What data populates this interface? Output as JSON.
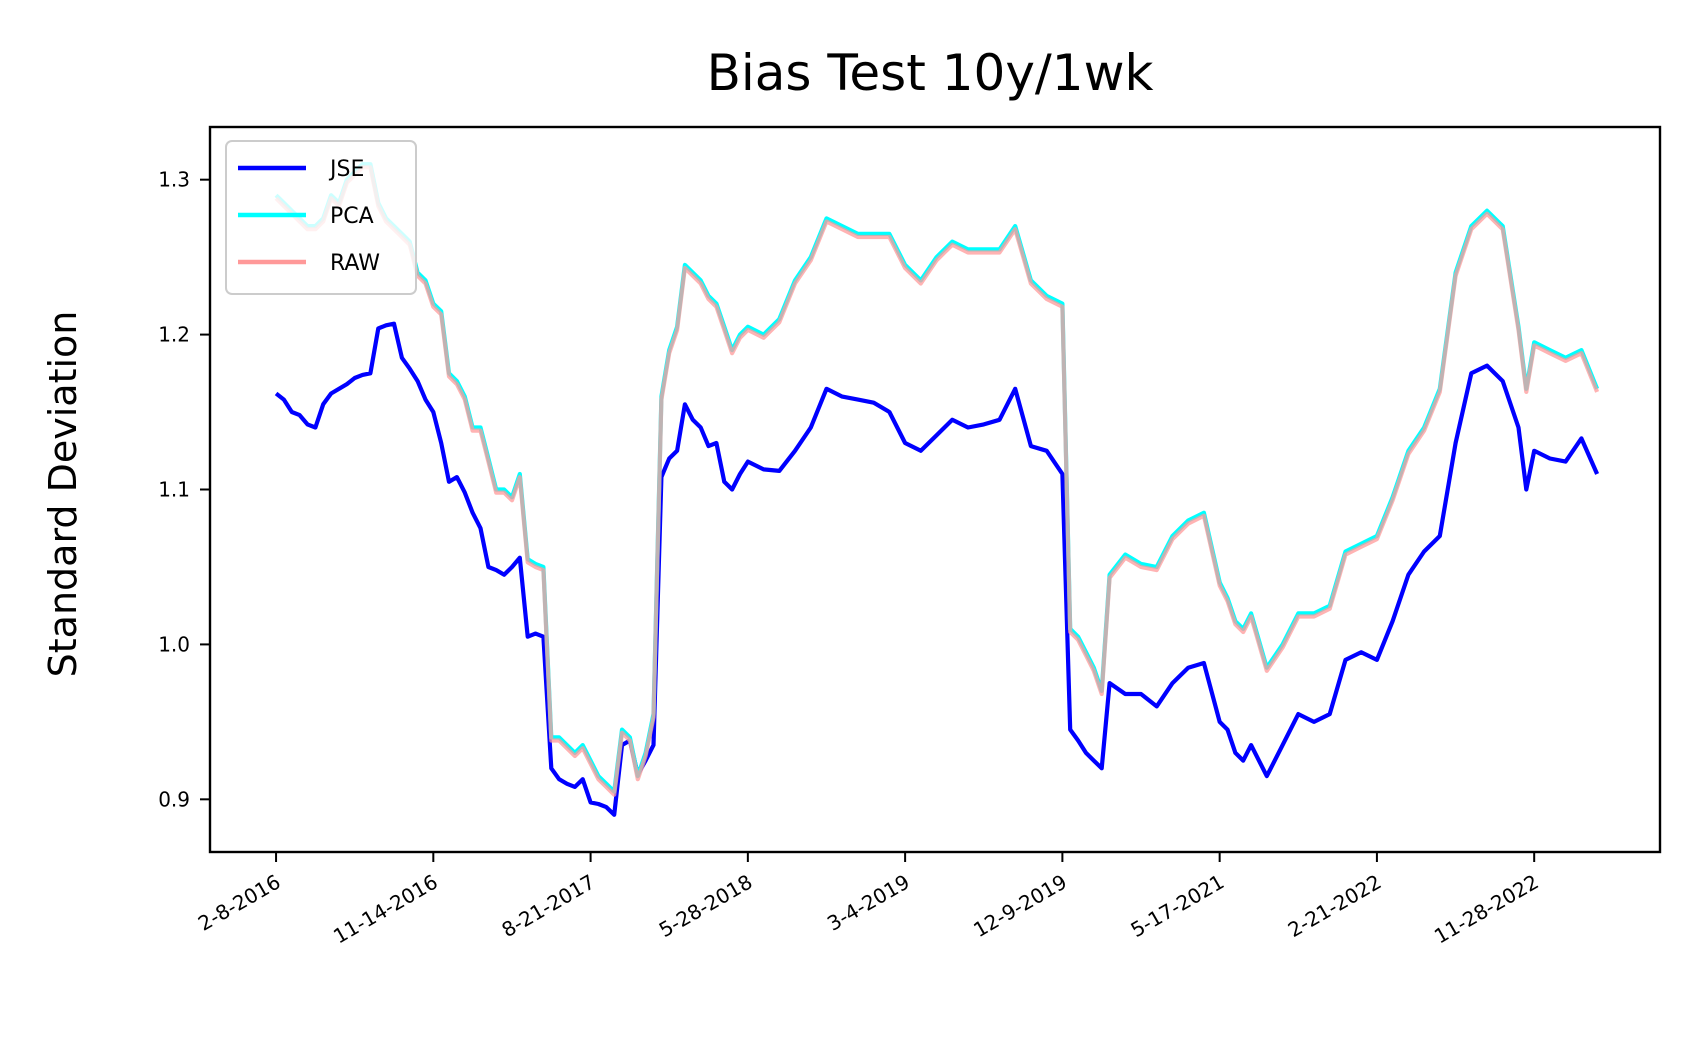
{
  "chart_data": {
    "type": "line",
    "title": "Bias Test 10y/1wk",
    "xlabel": "",
    "ylabel": "Standard Deviation",
    "xlim": [
      -0.42,
      8.8
    ],
    "ylim": [
      0.866,
      1.334
    ],
    "yticks": [
      0.9,
      1.0,
      1.1,
      1.2,
      1.3
    ],
    "ytick_labels": [
      "0.9",
      "1.0",
      "1.1",
      "1.2",
      "1.3"
    ],
    "xticks": [
      0,
      1,
      2,
      3,
      4,
      5,
      6,
      7,
      8
    ],
    "xtick_labels": [
      "2-8-2016",
      "11-14-2016",
      "8-21-2017",
      "5-28-2018",
      "3-4-2019",
      "12-9-2019",
      "5-17-2021",
      "2-21-2022",
      "11-28-2022"
    ],
    "grid": false,
    "legend_position": "upper left",
    "series": [
      {
        "name": "JSE",
        "color": "#0000ff",
        "x": [
          0,
          0.05,
          0.1,
          0.15,
          0.2,
          0.25,
          0.3,
          0.35,
          0.4,
          0.45,
          0.5,
          0.55,
          0.6,
          0.65,
          0.7,
          0.75,
          0.8,
          0.85,
          0.9,
          0.95,
          1.0,
          1.05,
          1.1,
          1.15,
          1.2,
          1.25,
          1.3,
          1.35,
          1.4,
          1.45,
          1.5,
          1.55,
          1.6,
          1.65,
          1.7,
          1.75,
          1.8,
          1.85,
          1.9,
          1.95,
          2.0,
          2.05,
          2.1,
          2.15,
          2.2,
          2.25,
          2.3,
          2.35,
          2.4,
          2.45,
          2.5,
          2.55,
          2.6,
          2.65,
          2.7,
          2.75,
          2.8,
          2.85,
          2.9,
          2.95,
          3.0,
          3.1,
          3.2,
          3.3,
          3.4,
          3.5,
          3.6,
          3.7,
          3.8,
          3.9,
          4.0,
          4.1,
          4.2,
          4.3,
          4.4,
          4.5,
          4.6,
          4.7,
          4.8,
          4.9,
          5.0,
          5.05,
          5.1,
          5.15,
          5.2,
          5.25,
          5.3,
          5.4,
          5.5,
          5.6,
          5.7,
          5.8,
          5.9,
          6.0,
          6.05,
          6.1,
          6.15,
          6.2,
          6.3,
          6.4,
          6.5,
          6.6,
          6.7,
          6.8,
          6.9,
          7.0,
          7.1,
          7.2,
          7.3,
          7.4,
          7.5,
          7.6,
          7.7,
          7.8,
          7.9,
          7.95,
          8.0,
          8.1,
          8.2,
          8.3,
          8.4
        ],
        "y": [
          1.162,
          1.158,
          1.15,
          1.148,
          1.142,
          1.14,
          1.155,
          1.162,
          1.165,
          1.168,
          1.172,
          1.174,
          1.175,
          1.204,
          1.206,
          1.207,
          1.185,
          1.178,
          1.17,
          1.158,
          1.15,
          1.13,
          1.105,
          1.108,
          1.098,
          1.085,
          1.075,
          1.05,
          1.048,
          1.045,
          1.05,
          1.056,
          1.005,
          1.007,
          1.005,
          0.92,
          0.913,
          0.91,
          0.908,
          0.913,
          0.898,
          0.897,
          0.895,
          0.89,
          0.935,
          0.938,
          0.916,
          0.925,
          0.935,
          1.108,
          1.12,
          1.125,
          1.155,
          1.145,
          1.14,
          1.128,
          1.13,
          1.105,
          1.1,
          1.11,
          1.118,
          1.113,
          1.112,
          1.125,
          1.14,
          1.165,
          1.16,
          1.158,
          1.156,
          1.15,
          1.13,
          1.125,
          1.135,
          1.145,
          1.14,
          1.142,
          1.145,
          1.165,
          1.128,
          1.125,
          1.11,
          0.945,
          0.938,
          0.93,
          0.925,
          0.92,
          0.975,
          0.968,
          0.968,
          0.96,
          0.975,
          0.985,
          0.988,
          0.95,
          0.945,
          0.93,
          0.925,
          0.935,
          0.915,
          0.935,
          0.955,
          0.95,
          0.955,
          0.99,
          0.995,
          0.99,
          1.015,
          1.045,
          1.06,
          1.07,
          1.13,
          1.175,
          1.18,
          1.17,
          1.14,
          1.1,
          1.125,
          1.12,
          1.118,
          1.133,
          1.11
        ]
      },
      {
        "name": "PCA",
        "color": "#00ffff",
        "x": [
          0,
          0.05,
          0.1,
          0.15,
          0.2,
          0.25,
          0.3,
          0.35,
          0.4,
          0.45,
          0.5,
          0.55,
          0.6,
          0.65,
          0.7,
          0.75,
          0.8,
          0.85,
          0.9,
          0.95,
          1.0,
          1.05,
          1.1,
          1.15,
          1.2,
          1.25,
          1.3,
          1.35,
          1.4,
          1.45,
          1.5,
          1.55,
          1.6,
          1.65,
          1.7,
          1.75,
          1.8,
          1.85,
          1.9,
          1.95,
          2.0,
          2.05,
          2.1,
          2.15,
          2.2,
          2.25,
          2.3,
          2.35,
          2.4,
          2.45,
          2.5,
          2.55,
          2.6,
          2.65,
          2.7,
          2.75,
          2.8,
          2.85,
          2.9,
          2.95,
          3.0,
          3.1,
          3.2,
          3.3,
          3.4,
          3.5,
          3.6,
          3.7,
          3.8,
          3.9,
          4.0,
          4.1,
          4.2,
          4.3,
          4.4,
          4.5,
          4.6,
          4.7,
          4.8,
          4.9,
          5.0,
          5.05,
          5.1,
          5.15,
          5.2,
          5.25,
          5.3,
          5.4,
          5.5,
          5.6,
          5.7,
          5.8,
          5.9,
          6.0,
          6.05,
          6.1,
          6.15,
          6.2,
          6.3,
          6.4,
          6.5,
          6.6,
          6.7,
          6.8,
          6.9,
          7.0,
          7.1,
          7.2,
          7.3,
          7.4,
          7.5,
          7.6,
          7.7,
          7.8,
          7.9,
          7.95,
          8.0,
          8.1,
          8.2,
          8.3,
          8.4
        ],
        "y": [
          1.29,
          1.285,
          1.28,
          1.275,
          1.27,
          1.27,
          1.275,
          1.29,
          1.285,
          1.3,
          1.305,
          1.31,
          1.31,
          1.285,
          1.275,
          1.27,
          1.265,
          1.26,
          1.24,
          1.235,
          1.22,
          1.215,
          1.175,
          1.17,
          1.16,
          1.14,
          1.14,
          1.12,
          1.1,
          1.1,
          1.095,
          1.11,
          1.055,
          1.052,
          1.05,
          0.94,
          0.94,
          0.935,
          0.93,
          0.935,
          0.925,
          0.915,
          0.91,
          0.905,
          0.945,
          0.94,
          0.915,
          0.93,
          0.955,
          1.16,
          1.19,
          1.205,
          1.245,
          1.24,
          1.235,
          1.225,
          1.22,
          1.205,
          1.19,
          1.2,
          1.205,
          1.2,
          1.21,
          1.235,
          1.25,
          1.275,
          1.27,
          1.265,
          1.265,
          1.265,
          1.245,
          1.235,
          1.25,
          1.26,
          1.255,
          1.255,
          1.255,
          1.27,
          1.235,
          1.225,
          1.22,
          1.01,
          1.005,
          0.995,
          0.985,
          0.97,
          1.045,
          1.058,
          1.052,
          1.05,
          1.07,
          1.08,
          1.085,
          1.04,
          1.03,
          1.015,
          1.01,
          1.02,
          0.985,
          1.0,
          1.02,
          1.02,
          1.025,
          1.06,
          1.065,
          1.07,
          1.095,
          1.125,
          1.14,
          1.165,
          1.24,
          1.27,
          1.28,
          1.27,
          1.205,
          1.165,
          1.195,
          1.19,
          1.185,
          1.19,
          1.165
        ]
      },
      {
        "name": "RAW",
        "color": "#ff9999",
        "x": [
          0,
          0.05,
          0.1,
          0.15,
          0.2,
          0.25,
          0.3,
          0.35,
          0.4,
          0.45,
          0.5,
          0.55,
          0.6,
          0.65,
          0.7,
          0.75,
          0.8,
          0.85,
          0.9,
          0.95,
          1.0,
          1.05,
          1.1,
          1.15,
          1.2,
          1.25,
          1.3,
          1.35,
          1.4,
          1.45,
          1.5,
          1.55,
          1.6,
          1.65,
          1.7,
          1.75,
          1.8,
          1.85,
          1.9,
          1.95,
          2.0,
          2.05,
          2.1,
          2.15,
          2.2,
          2.25,
          2.3,
          2.35,
          2.4,
          2.45,
          2.5,
          2.55,
          2.6,
          2.65,
          2.7,
          2.75,
          2.8,
          2.85,
          2.9,
          2.95,
          3.0,
          3.1,
          3.2,
          3.3,
          3.4,
          3.5,
          3.6,
          3.7,
          3.8,
          3.9,
          4.0,
          4.1,
          4.2,
          4.3,
          4.4,
          4.5,
          4.6,
          4.7,
          4.8,
          4.9,
          5.0,
          5.05,
          5.1,
          5.15,
          5.2,
          5.25,
          5.3,
          5.4,
          5.5,
          5.6,
          5.7,
          5.8,
          5.9,
          6.0,
          6.05,
          6.1,
          6.15,
          6.2,
          6.3,
          6.4,
          6.5,
          6.6,
          6.7,
          6.8,
          6.9,
          7.0,
          7.1,
          7.2,
          7.3,
          7.4,
          7.5,
          7.6,
          7.7,
          7.8,
          7.9,
          7.95,
          8.0,
          8.1,
          8.2,
          8.3,
          8.4
        ],
        "y": [
          1.288,
          1.283,
          1.278,
          1.273,
          1.268,
          1.268,
          1.273,
          1.288,
          1.283,
          1.298,
          1.303,
          1.308,
          1.308,
          1.283,
          1.273,
          1.268,
          1.263,
          1.258,
          1.238,
          1.233,
          1.218,
          1.213,
          1.173,
          1.168,
          1.158,
          1.138,
          1.138,
          1.118,
          1.098,
          1.098,
          1.093,
          1.108,
          1.053,
          1.05,
          1.048,
          0.938,
          0.938,
          0.933,
          0.928,
          0.933,
          0.923,
          0.913,
          0.908,
          0.903,
          0.943,
          0.938,
          0.913,
          0.928,
          0.953,
          1.158,
          1.188,
          1.203,
          1.243,
          1.238,
          1.233,
          1.223,
          1.218,
          1.203,
          1.188,
          1.198,
          1.203,
          1.198,
          1.208,
          1.233,
          1.248,
          1.273,
          1.268,
          1.263,
          1.263,
          1.263,
          1.243,
          1.233,
          1.248,
          1.258,
          1.253,
          1.253,
          1.253,
          1.268,
          1.233,
          1.223,
          1.218,
          1.008,
          1.003,
          0.993,
          0.983,
          0.968,
          1.043,
          1.056,
          1.05,
          1.048,
          1.068,
          1.078,
          1.083,
          1.038,
          1.028,
          1.013,
          1.008,
          1.018,
          0.983,
          0.998,
          1.018,
          1.018,
          1.023,
          1.058,
          1.063,
          1.068,
          1.093,
          1.123,
          1.138,
          1.163,
          1.238,
          1.268,
          1.278,
          1.268,
          1.203,
          1.163,
          1.193,
          1.188,
          1.183,
          1.188,
          1.163
        ]
      }
    ]
  }
}
